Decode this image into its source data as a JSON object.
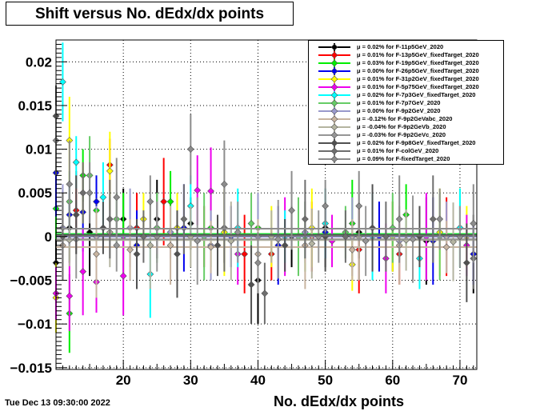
{
  "footer": {
    "timestamp": "Tue Dec 13 09:30:00 2022"
  },
  "chart_data": {
    "type": "scatter",
    "title": "Shift versus No. dEdx/dx points",
    "xlabel": "No. dEdx/dx points",
    "ylabel": "",
    "xlim": [
      10,
      72.5
    ],
    "ylim": [
      -0.0152,
      0.0225
    ],
    "x_ticks": [
      20,
      30,
      40,
      50,
      60,
      70
    ],
    "x_tick_labels": [
      "20",
      "30",
      "40",
      "50",
      "60",
      "70"
    ],
    "y_ticks": [
      -0.015,
      -0.01,
      -0.005,
      0,
      0.005,
      0.01,
      0.015,
      0.02
    ],
    "y_tick_labels": [
      "−0.015",
      "−0.01",
      "−0.005",
      "0",
      "0.005",
      "0.01",
      "0.015",
      "0.02"
    ],
    "grid": true,
    "legend_position": "top-right",
    "series": [
      {
        "legend": "μ = 0.02% for F-11p5GeV_2020",
        "color": "#000000",
        "fit": 0.0002,
        "x": [
          10,
          12,
          15,
          20,
          25,
          30,
          35,
          40,
          45,
          50,
          55,
          60,
          65,
          70,
          72
        ],
        "y": [
          -0.003,
          0.001,
          0.0005,
          0.002,
          0.002,
          0.0015,
          0.001,
          -0.005,
          0.0,
          0.001,
          0.0005,
          0.0,
          -0.0005,
          0.0,
          -0.002
        ]
      },
      {
        "legend": "μ = 0.01% for F-13p5GeV_fixedTarget_2020",
        "color": "#ff0000",
        "fit": 0.0001,
        "x": [
          13,
          18,
          22,
          26,
          32,
          38,
          42,
          48,
          55,
          61,
          68
        ],
        "y": [
          0.003,
          0.0082,
          0.001,
          0.004,
          0.0,
          -0.002,
          -0.002,
          0.0,
          -0.0015,
          -0.002,
          0.0
        ]
      },
      {
        "legend": "μ = 0.03% for F-19p5GeV_fixedTarget_2020",
        "color": "#00ee00",
        "fit": 0.0003,
        "x": [
          10,
          12,
          14,
          16,
          20,
          27,
          33,
          40,
          47,
          54,
          62,
          70
        ],
        "y": [
          0.0032,
          -0.0088,
          0.007,
          0.003,
          0.0,
          0.004,
          0.001,
          0.001,
          0.0,
          0.0015,
          0.0025,
          0.001
        ]
      },
      {
        "legend": "μ = 0.00% for F-26p5GeV_fixedTarget_2020",
        "color": "#0000ee",
        "fit": 0.0,
        "x": [
          10,
          12,
          14,
          16,
          22,
          29,
          36,
          43,
          50,
          58,
          66,
          72
        ],
        "y": [
          0.0073,
          0.0025,
          0.0028,
          0.004,
          -0.001,
          0.001,
          0.0,
          -0.001,
          0.0005,
          0.0,
          -0.0005,
          -0.002
        ]
      },
      {
        "legend": "μ = 0.01% for F-31p2GeV_fixedTarget_2020",
        "color": "#ffff00",
        "fit": 0.0001,
        "x": [
          10,
          12,
          14,
          18,
          23,
          28,
          35,
          42,
          48,
          54,
          60,
          67,
          71
        ],
        "y": [
          -0.007,
          0.011,
          0.005,
          0.0075,
          0.002,
          0.001,
          0.0005,
          0.0,
          0.001,
          -0.0032,
          0.0,
          0.0005,
          0.0
        ]
      },
      {
        "legend": "μ = 0.01% for F-5p75GeV_fixedTarget_2020",
        "color": "#ee00ee",
        "fit": 0.0001,
        "x": [
          10,
          12,
          14,
          16,
          20,
          25,
          31,
          33,
          37,
          44,
          51,
          59,
          65,
          71
        ],
        "y": [
          -0.0065,
          -0.0068,
          -0.004,
          -0.0052,
          -0.0045,
          0.001,
          0.0053,
          0.0052,
          -0.002,
          0.0,
          -0.0005,
          -0.0025,
          0.0,
          -0.001
        ]
      },
      {
        "legend": "μ = 0.02% for F-7p3GeV_fixedTarget_2020",
        "color": "#00ffff",
        "fit": 0.0002,
        "x": [
          11,
          13,
          17,
          24,
          30,
          37,
          44,
          50,
          57,
          64,
          70
        ],
        "y": [
          0.0177,
          0.0085,
          0.0045,
          -0.0043,
          0.0035,
          0.001,
          0.0,
          0.0015,
          0.0,
          -0.0025,
          0.001
        ]
      },
      {
        "legend": "μ = 0.01% for F-7p7GeV_2020",
        "color": "#66cc66",
        "fit": 0.0001,
        "x": [
          12,
          15,
          19,
          25,
          32,
          39,
          46,
          53,
          60,
          67
        ],
        "y": [
          0.004,
          0.007,
          0.002,
          0.001,
          0.0,
          0.0015,
          0.0,
          0.0005,
          0.001,
          0.0
        ]
      },
      {
        "legend": "μ = 0.00% for F-9p2GeV_2020",
        "color": "#9999cc",
        "fit": 0.0,
        "x": [
          11,
          16,
          21,
          27,
          33,
          40,
          47,
          54,
          61,
          68
        ],
        "y": [
          0.001,
          0.0,
          0.001,
          0.0005,
          -0.001,
          0.0,
          0.0005,
          0.0,
          -0.0005,
          0.0
        ]
      },
      {
        "legend": "μ = -0.12% for F-9p2GeVabc_2020",
        "color": "#c8b4a0",
        "fit": -0.0012,
        "x": [
          11,
          16,
          21,
          27,
          33,
          40,
          47,
          54,
          61,
          68
        ],
        "y": [
          -0.001,
          -0.002,
          -0.0015,
          -0.001,
          -0.0012,
          -0.002,
          -0.001,
          -0.0015,
          -0.001,
          -0.0012
        ]
      },
      {
        "legend": "μ = -0.04% for F-9p2GeVb_2020",
        "color": "#b4b4a0",
        "fit": -0.0004,
        "x": [
          12,
          18,
          24,
          30,
          36,
          42,
          48,
          55,
          62,
          69
        ],
        "y": [
          -0.0004,
          0.0005,
          -0.001,
          0.0,
          -0.0005,
          0.0,
          -0.0008,
          0.0,
          -0.0004,
          -0.0006
        ]
      },
      {
        "legend": "μ = -0.03% for F-9p2GeVc_2020",
        "color": "#969696",
        "fit": -0.0003,
        "x": [
          13,
          19,
          25,
          31,
          37,
          43,
          49,
          56,
          63,
          70
        ],
        "y": [
          -0.0003,
          -0.001,
          0.0,
          -0.0005,
          0.0005,
          -0.0003,
          0.0,
          -0.0005,
          -0.0003,
          0.0
        ]
      },
      {
        "legend": "μ = 0.02% for F-9p8GeV_fixedTarget_2020",
        "color": "#505050",
        "fit": 0.0002,
        "x": [
          10,
          13,
          17,
          22,
          28,
          34,
          39,
          44,
          50,
          57,
          64,
          71
        ],
        "y": [
          0.0138,
          0.0025,
          0.001,
          -0.002,
          -0.002,
          -0.001,
          -0.0055,
          -0.001,
          0.0,
          0.001,
          0.0,
          -0.003
        ]
      },
      {
        "legend": "μ = 0.01% for F-colGeV_2020",
        "color": "#6e6e6e",
        "fit": 0.0001,
        "x": [
          11,
          14,
          18,
          23,
          29,
          35,
          41,
          47,
          53,
          59,
          66,
          72
        ],
        "y": [
          0.0,
          0.005,
          0.002,
          0.0,
          0.002,
          0.001,
          -0.0065,
          0.002,
          0.0,
          0.0,
          0.002,
          -0.0025
        ]
      },
      {
        "legend": "μ = 0.09% for F-fixedTarget_2020",
        "color": "#8c8c8c",
        "fit": 0.0009,
        "x": [
          10,
          12,
          15,
          19,
          24,
          30,
          35,
          40,
          45,
          50,
          55,
          61,
          67,
          72
        ],
        "y": [
          0.011,
          0.006,
          0.005,
          0.0045,
          0.004,
          0.01,
          0.006,
          -0.003,
          0.003,
          0.0035,
          0.0035,
          0.002,
          0.002,
          0.0015
        ]
      }
    ]
  }
}
